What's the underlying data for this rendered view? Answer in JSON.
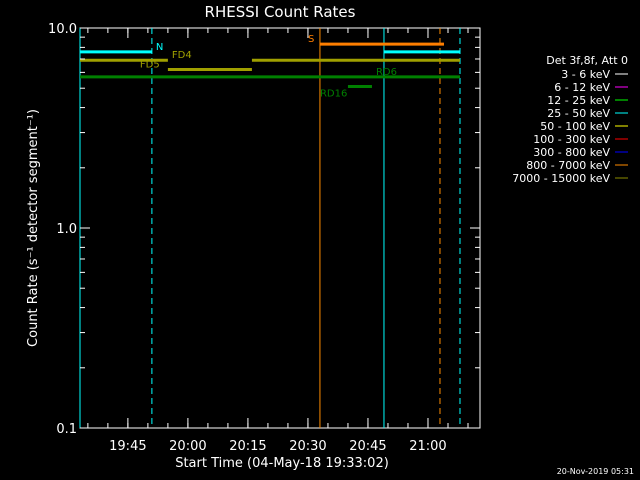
{
  "chart_data": {
    "type": "line",
    "title": "RHESSI Count Rates",
    "xlabel": "Start Time (04-May-18 19:33:02)",
    "ylabel": "Count Rate (s⁻¹ detector segment⁻¹)",
    "yscale": "log",
    "ylim": [
      0.1,
      10.0
    ],
    "xlim": [
      "19:33:02",
      "21:13:00"
    ],
    "x_ticks": [
      "19:45",
      "20:00",
      "20:15",
      "20:30",
      "20:45",
      "21:00"
    ],
    "y_ticks": [
      "0.1",
      "1.0",
      "10.0"
    ],
    "grid": false,
    "legend_placement": "right",
    "legend_title": "Det 3f,8f, Att 0",
    "legend": [
      {
        "label": "3 - 6 keV",
        "color": "#ffffff"
      },
      {
        "label": "6 - 12 keV",
        "color": "#ff00ff"
      },
      {
        "label": "12 - 25 keV",
        "color": "#00ff00"
      },
      {
        "label": "25 - 50 keV",
        "color": "#00ffff"
      },
      {
        "label": "50 - 100 keV",
        "color": "#ffff00"
      },
      {
        "label": "100 - 300 keV",
        "color": "#ff0000"
      },
      {
        "label": "300 - 800 keV",
        "color": "#0000ff"
      },
      {
        "label": "800 - 7000 keV",
        "color": "#ff8c00"
      },
      {
        "label": "7000 - 15000 keV",
        "color": "#8b8b00"
      }
    ],
    "segments": [
      {
        "name": "N",
        "color": "#00ffff",
        "y": 7.6,
        "x_start": "19:33:02",
        "x_end": "19:51:00"
      },
      {
        "name": "",
        "color": "#00ffff",
        "y": 7.6,
        "x_start": "20:49:00",
        "x_end": "21:08:00"
      },
      {
        "name": "FD4",
        "color": "#a0a000",
        "y": 6.9,
        "x_start": "19:33:02",
        "x_end": "19:55:00"
      },
      {
        "name": "",
        "color": "#a0a000",
        "y": 6.9,
        "x_start": "20:16:00",
        "x_end": "21:08:00"
      },
      {
        "name": "FD5",
        "color": "#a0a000",
        "y": 6.2,
        "x_start": "19:55:00",
        "x_end": "20:16:00"
      },
      {
        "name": "S",
        "color": "#ff7f00",
        "y": 8.3,
        "x_start": "20:33:00",
        "x_end": "21:04:00"
      },
      {
        "name": "RD6",
        "color": "#008000",
        "y": 5.7,
        "x_start": "19:33:02",
        "x_end": "21:08:00"
      },
      {
        "name": "RD16",
        "color": "#008000",
        "y": 5.1,
        "x_start": "20:40:00",
        "x_end": "20:46:00"
      }
    ],
    "vlines": [
      {
        "x": "19:33:02",
        "color": "#00ffff",
        "style": "solid"
      },
      {
        "x": "19:51:00",
        "color": "#00ffff",
        "style": "dashed"
      },
      {
        "x": "20:33:00",
        "color": "#ff8c00",
        "style": "solid"
      },
      {
        "x": "20:49:00",
        "color": "#00ffff",
        "style": "solid"
      },
      {
        "x": "21:03:00",
        "color": "#ff8c00",
        "style": "dashed"
      },
      {
        "x": "21:08:00",
        "color": "#00ffff",
        "style": "dashed"
      }
    ]
  },
  "footer": {
    "date_stamp": "20-Nov-2019 05:31"
  }
}
